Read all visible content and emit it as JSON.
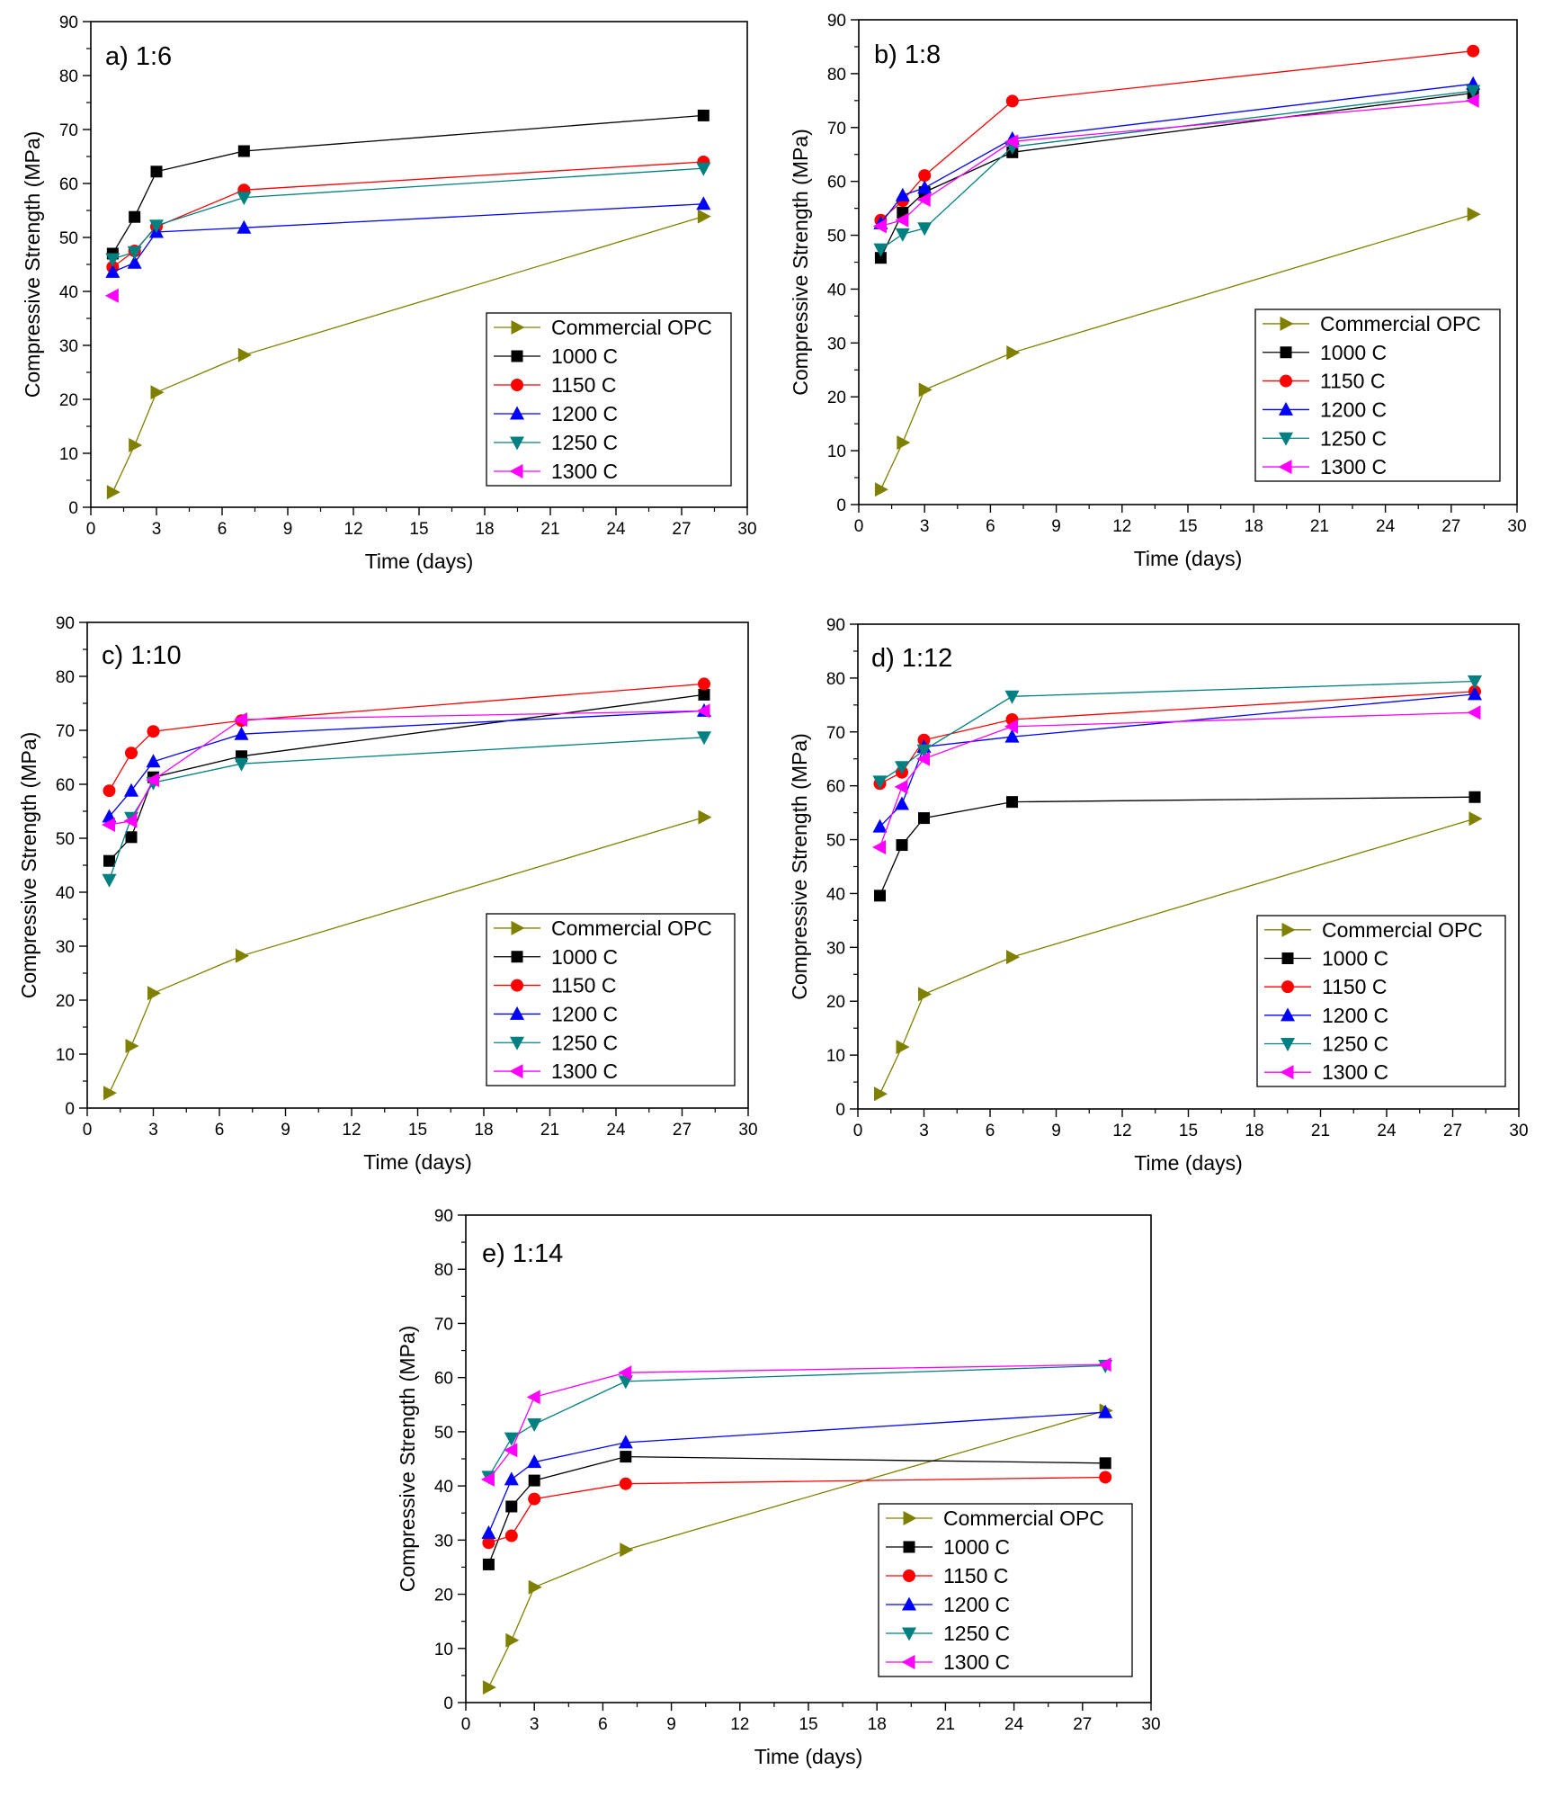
{
  "series_styles": [
    {
      "name": "Commercial OPC",
      "color": "#808000",
      "marker": "triangle-right"
    },
    {
      "name": "1000 C",
      "color": "#000000",
      "marker": "square"
    },
    {
      "name": "1150 C",
      "color": "#ff0000",
      "marker": "circle"
    },
    {
      "name": "1200 C",
      "color": "#0000ff",
      "marker": "triangle-up"
    },
    {
      "name": "1250 C",
      "color": "#008080",
      "marker": "triangle-down"
    },
    {
      "name": "1300 C",
      "color": "#ff00ff",
      "marker": "triangle-left"
    }
  ],
  "chart_data": [
    {
      "type": "line",
      "title": "a) 1:6",
      "xlabel": "Time (days)",
      "ylabel": "Compressive Strength (MPa)",
      "xlim": [
        0,
        30
      ],
      "ylim": [
        0,
        90
      ],
      "xticks": [
        0,
        3,
        6,
        9,
        12,
        15,
        18,
        21,
        24,
        27,
        30
      ],
      "yticks": [
        0,
        10,
        20,
        30,
        40,
        50,
        60,
        70,
        80,
        90
      ],
      "legend": "bottom-right",
      "series": [
        {
          "name": "Commercial OPC",
          "x": [
            1,
            2,
            3,
            7,
            28
          ],
          "y": [
            2.8,
            11.5,
            21.3,
            28.2,
            53.9
          ]
        },
        {
          "name": "1000 C",
          "x": [
            1,
            2,
            3,
            7,
            28
          ],
          "y": [
            47.0,
            53.8,
            62.2,
            66.0,
            72.6
          ]
        },
        {
          "name": "1150 C",
          "x": [
            1,
            2,
            3,
            7,
            28
          ],
          "y": [
            44.5,
            47.5,
            52.0,
            58.8,
            64.0
          ]
        },
        {
          "name": "1200 C",
          "x": [
            1,
            2,
            3,
            7,
            28
          ],
          "y": [
            43.6,
            45.3,
            51.0,
            51.8,
            56.2
          ]
        },
        {
          "name": "1250 C",
          "x": [
            1,
            2,
            3,
            7,
            28
          ],
          "y": [
            46.0,
            47.3,
            52.2,
            57.4,
            62.8
          ]
        },
        {
          "name": "1300 C",
          "x": [
            1
          ],
          "y": [
            39.2
          ]
        }
      ]
    },
    {
      "type": "line",
      "title": "b) 1:8",
      "xlabel": "Time (days)",
      "ylabel": "Compressive Strength (MPa)",
      "xlim": [
        0,
        30
      ],
      "ylim": [
        0,
        90
      ],
      "xticks": [
        0,
        3,
        6,
        9,
        12,
        15,
        18,
        21,
        24,
        27,
        30
      ],
      "yticks": [
        0,
        10,
        20,
        30,
        40,
        50,
        60,
        70,
        80,
        90
      ],
      "legend": "bottom-right",
      "series": [
        {
          "name": "Commercial OPC",
          "x": [
            1,
            2,
            3,
            7,
            28
          ],
          "y": [
            2.8,
            11.5,
            21.3,
            28.2,
            53.9
          ]
        },
        {
          "name": "1000 C",
          "x": [
            1,
            2,
            3,
            7,
            28
          ],
          "y": [
            45.8,
            54.2,
            58.0,
            65.4,
            76.4
          ]
        },
        {
          "name": "1150 C",
          "x": [
            1,
            2,
            3,
            7,
            28
          ],
          "y": [
            52.8,
            56.4,
            61.1,
            74.9,
            84.2
          ]
        },
        {
          "name": "1200 C",
          "x": [
            1,
            2,
            3,
            7,
            28
          ],
          "y": [
            52.2,
            57.4,
            58.8,
            67.9,
            78.1
          ]
        },
        {
          "name": "1250 C",
          "x": [
            1,
            2,
            3,
            7,
            28
          ],
          "y": [
            47.4,
            50.2,
            51.3,
            66.4,
            76.8
          ]
        },
        {
          "name": "1300 C",
          "x": [
            1,
            2,
            3,
            7,
            28
          ],
          "y": [
            51.7,
            52.8,
            56.6,
            67.4,
            75.0
          ]
        }
      ]
    },
    {
      "type": "line",
      "title": "c) 1:10",
      "xlabel": "Time (days)",
      "ylabel": "Compressive Strength (MPa)",
      "xlim": [
        0,
        30
      ],
      "ylim": [
        0,
        90
      ],
      "xticks": [
        0,
        3,
        6,
        9,
        12,
        15,
        18,
        21,
        24,
        27,
        30
      ],
      "yticks": [
        0,
        10,
        20,
        30,
        40,
        50,
        60,
        70,
        80,
        90
      ],
      "legend": "bottom-right",
      "series": [
        {
          "name": "Commercial OPC",
          "x": [
            1,
            2,
            3,
            7,
            28
          ],
          "y": [
            2.8,
            11.5,
            21.3,
            28.2,
            53.9
          ]
        },
        {
          "name": "1000 C",
          "x": [
            1,
            2,
            3,
            7,
            28
          ],
          "y": [
            45.8,
            50.2,
            61.3,
            65.2,
            76.6
          ]
        },
        {
          "name": "1150 C",
          "x": [
            1,
            2,
            3,
            7,
            28
          ],
          "y": [
            58.8,
            65.8,
            69.8,
            71.8,
            78.6
          ]
        },
        {
          "name": "1200 C",
          "x": [
            1,
            2,
            3,
            7,
            28
          ],
          "y": [
            54.0,
            58.8,
            64.2,
            69.3,
            73.6
          ]
        },
        {
          "name": "1250 C",
          "x": [
            1,
            2,
            3,
            7,
            28
          ],
          "y": [
            42.3,
            53.8,
            60.3,
            63.8,
            68.7
          ]
        },
        {
          "name": "1300 C",
          "x": [
            1,
            2,
            3,
            7,
            28
          ],
          "y": [
            52.5,
            53.2,
            60.8,
            72.0,
            73.6
          ]
        }
      ]
    },
    {
      "type": "line",
      "title": "d) 1:12",
      "xlabel": "Time (days)",
      "ylabel": "Compressive Strength (MPa)",
      "xlim": [
        0,
        30
      ],
      "ylim": [
        0,
        90
      ],
      "xticks": [
        0,
        3,
        6,
        9,
        12,
        15,
        18,
        21,
        24,
        27,
        30
      ],
      "yticks": [
        0,
        10,
        20,
        30,
        40,
        50,
        60,
        70,
        80,
        90
      ],
      "legend": "bottom-right",
      "series": [
        {
          "name": "Commercial OPC",
          "x": [
            1,
            2,
            3,
            7,
            28
          ],
          "y": [
            2.8,
            11.5,
            21.3,
            28.2,
            53.9
          ]
        },
        {
          "name": "1000 C",
          "x": [
            1,
            2,
            3,
            7,
            28
          ],
          "y": [
            39.6,
            49.0,
            54.0,
            57.0,
            57.9
          ]
        },
        {
          "name": "1150 C",
          "x": [
            1,
            2,
            3,
            7,
            28
          ],
          "y": [
            60.4,
            62.5,
            68.5,
            72.3,
            77.5
          ]
        },
        {
          "name": "1200 C",
          "x": [
            1,
            2,
            3,
            7,
            28
          ],
          "y": [
            52.4,
            56.6,
            67.2,
            69.1,
            77.0
          ]
        },
        {
          "name": "1250 C",
          "x": [
            1,
            2,
            3,
            7,
            28
          ],
          "y": [
            60.8,
            63.5,
            66.6,
            76.6,
            79.4
          ]
        },
        {
          "name": "1300 C",
          "x": [
            1,
            2,
            3,
            7,
            28
          ],
          "y": [
            48.6,
            59.8,
            65.0,
            71.0,
            73.6
          ]
        }
      ]
    },
    {
      "type": "line",
      "title": "e) 1:14",
      "xlabel": "Time (days)",
      "ylabel": "Compressive Strength (MPa)",
      "xlim": [
        0,
        30
      ],
      "ylim": [
        0,
        90
      ],
      "xticks": [
        0,
        3,
        6,
        9,
        12,
        15,
        18,
        21,
        24,
        27,
        30
      ],
      "yticks": [
        0,
        10,
        20,
        30,
        40,
        50,
        60,
        70,
        80,
        90
      ],
      "legend": "bottom-right",
      "series": [
        {
          "name": "Commercial OPC",
          "x": [
            1,
            2,
            3,
            7,
            28
          ],
          "y": [
            2.8,
            11.5,
            21.3,
            28.2,
            53.9
          ]
        },
        {
          "name": "1000 C",
          "x": [
            1,
            2,
            3,
            7,
            28
          ],
          "y": [
            25.5,
            36.2,
            41.0,
            45.4,
            44.2
          ]
        },
        {
          "name": "1150 C",
          "x": [
            1,
            2,
            3,
            7,
            28
          ],
          "y": [
            29.5,
            30.8,
            37.6,
            40.4,
            41.6
          ]
        },
        {
          "name": "1200 C",
          "x": [
            1,
            2,
            3,
            7,
            28
          ],
          "y": [
            31.3,
            41.2,
            44.4,
            48.0,
            53.6
          ]
        },
        {
          "name": "1250 C",
          "x": [
            1,
            2,
            3,
            7,
            28
          ],
          "y": [
            41.7,
            48.8,
            51.4,
            59.3,
            62.2
          ]
        },
        {
          "name": "1300 C",
          "x": [
            1,
            2,
            3,
            7,
            28
          ],
          "y": [
            41.2,
            46.6,
            56.4,
            60.9,
            62.4
          ]
        }
      ]
    }
  ]
}
